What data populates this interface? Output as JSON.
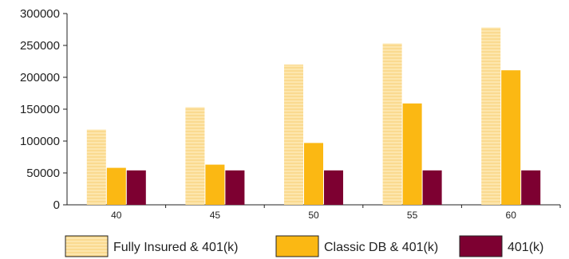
{
  "chart_data": {
    "type": "bar",
    "categories": [
      "40",
      "45",
      "50",
      "55",
      "60"
    ],
    "series": [
      {
        "name": "Fully Insured & 401(k)",
        "values": [
          118000,
          153000,
          220000,
          253000,
          278000
        ],
        "color": "#fde2a0",
        "pattern": "horizontal-lines"
      },
      {
        "name": "Classic DB & 401(k)",
        "values": [
          58000,
          63000,
          97000,
          159000,
          211000
        ],
        "color": "#fbb813"
      },
      {
        "name": "401(k)",
        "values": [
          54000,
          54000,
          54000,
          54000,
          54000
        ],
        "color": "#7d0031"
      }
    ],
    "title": "",
    "xlabel": "",
    "ylabel": "",
    "ylim": [
      0,
      300000
    ],
    "yticks": [
      0,
      50000,
      100000,
      150000,
      200000,
      250000,
      300000
    ],
    "legend": "bottom",
    "grid": false
  }
}
